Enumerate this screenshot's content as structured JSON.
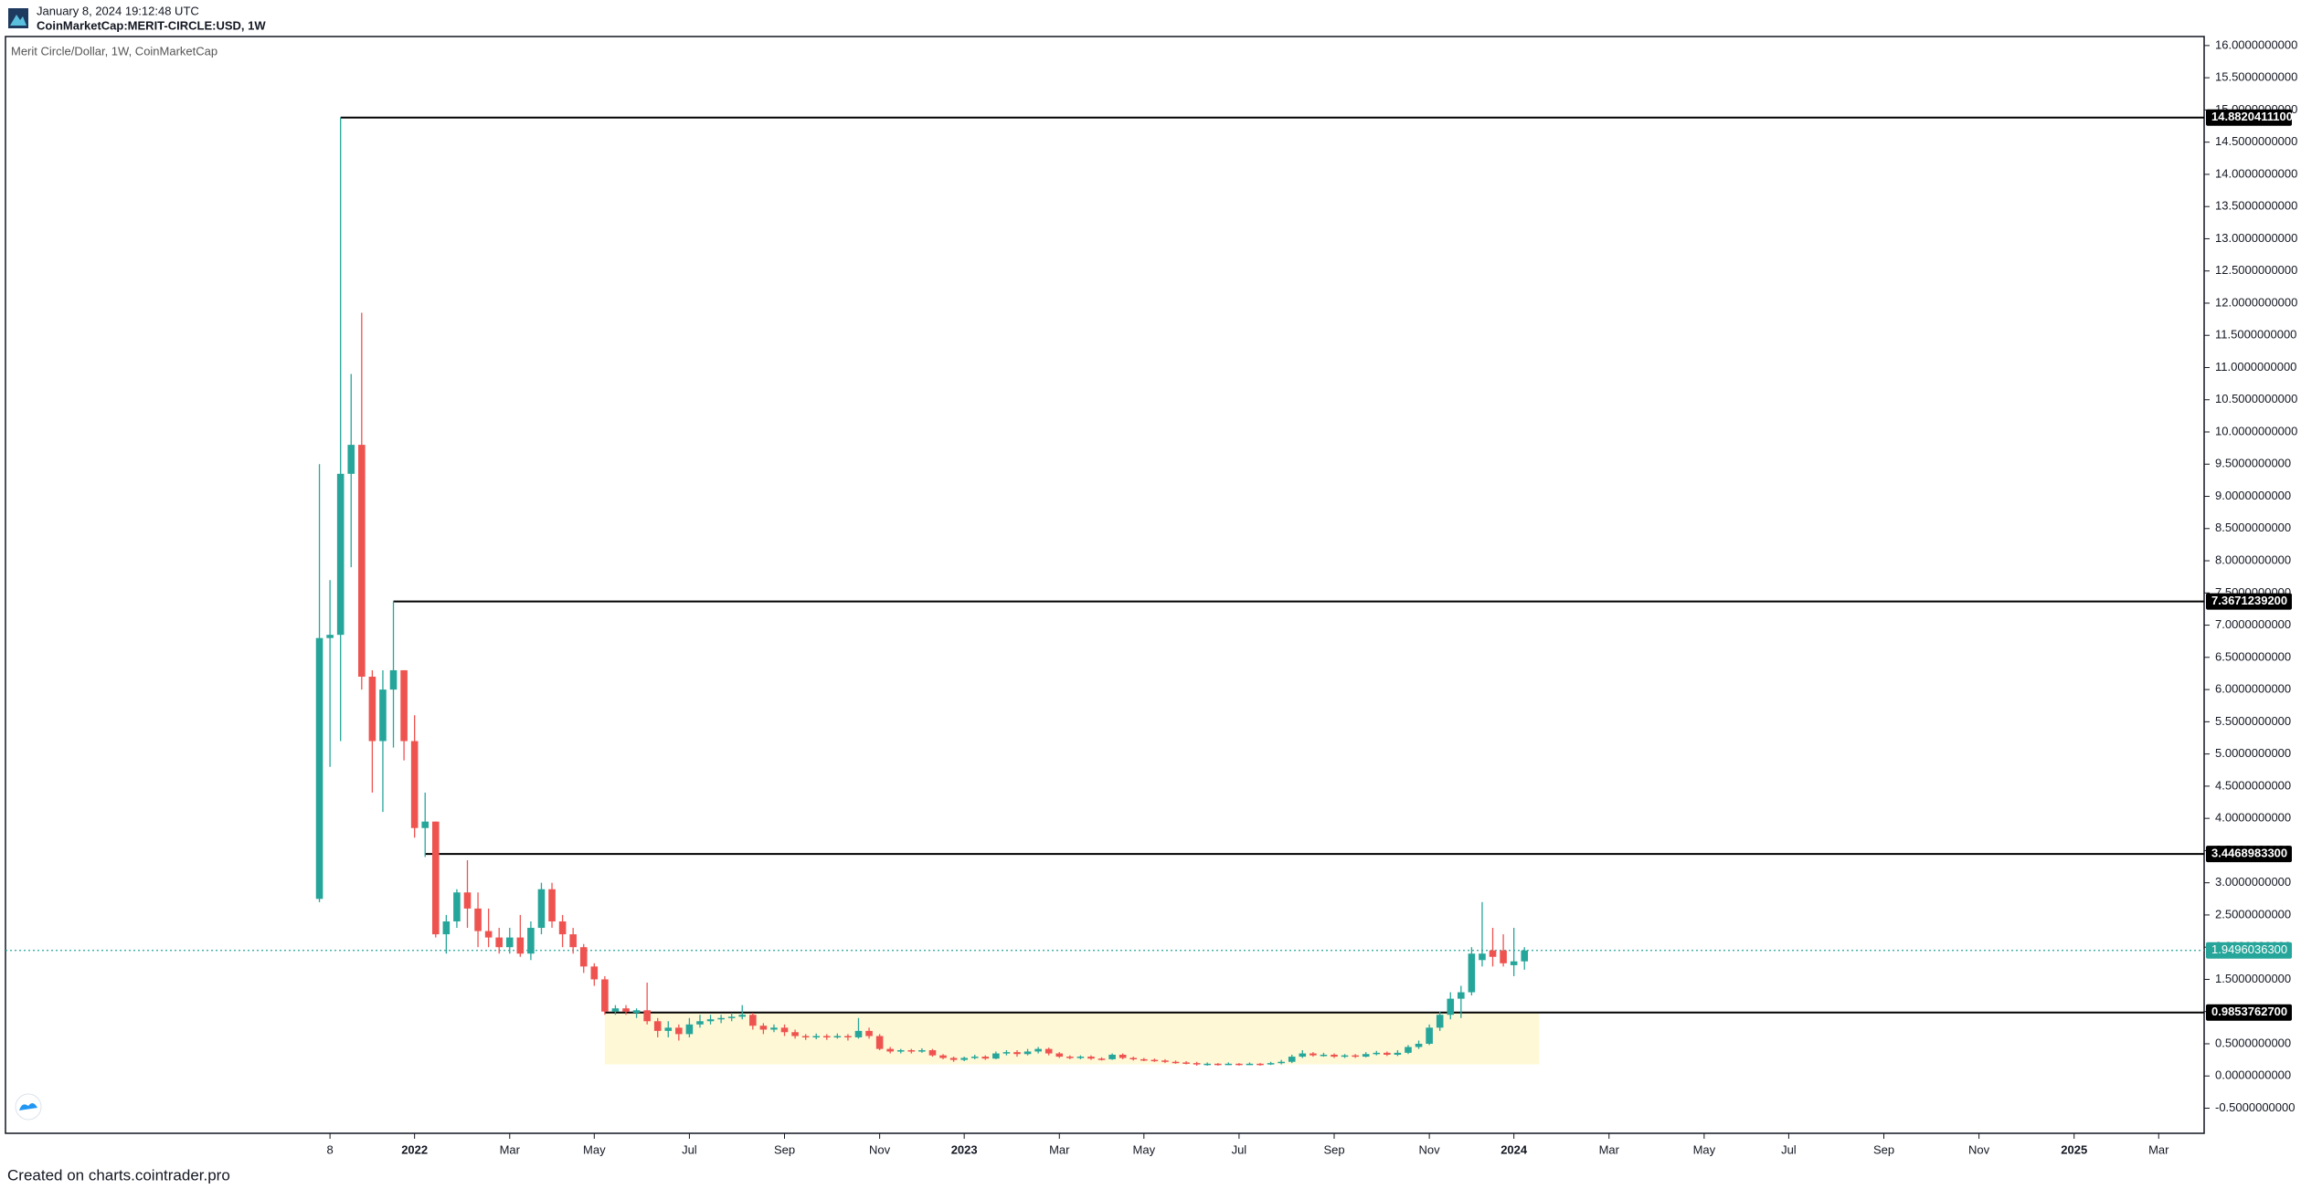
{
  "header": {
    "date": "January 8, 2024 19:12:48 UTC",
    "symbol": "CoinMarketCap:MERIT-CIRCLE:USD, 1W"
  },
  "footer": "Created on charts.cointrader.pro",
  "chart_data": {
    "type": "candlestick",
    "title": "Merit Circle/Dollar, 1W, CoinMarketCap",
    "up_color": "#26a69a",
    "down_color": "#ef5350",
    "grid": false,
    "open": [
      2.75,
      6.8,
      6.85,
      9.35,
      9.8,
      6.2,
      5.2,
      6.0,
      6.3,
      5.2,
      3.85,
      3.95,
      2.2,
      2.4,
      2.85,
      2.6,
      2.25,
      2.15,
      2.0,
      2.15,
      1.9,
      2.3,
      2.9,
      2.4,
      2.2,
      2.0,
      1.7,
      1.5,
      1.0,
      1.05,
      0.98,
      1.02,
      0.85,
      0.7,
      0.75,
      0.65,
      0.8,
      0.85,
      0.88,
      0.9,
      0.92,
      0.95,
      0.78,
      0.72,
      0.75,
      0.68,
      0.62,
      0.6,
      0.62,
      0.6,
      0.62,
      0.6,
      0.7,
      0.62,
      0.42,
      0.38,
      0.4,
      0.38,
      0.4,
      0.32,
      0.28,
      0.25,
      0.28,
      0.3,
      0.27,
      0.35,
      0.37,
      0.34,
      0.38,
      0.42,
      0.35,
      0.3,
      0.28,
      0.3,
      0.27,
      0.26,
      0.33,
      0.28,
      0.26,
      0.25,
      0.24,
      0.22,
      0.21,
      0.2,
      0.18,
      0.19,
      0.18,
      0.19,
      0.18,
      0.19,
      0.18,
      0.2,
      0.22,
      0.3,
      0.35,
      0.32,
      0.33,
      0.3,
      0.32,
      0.3,
      0.34,
      0.36,
      0.33,
      0.36,
      0.45,
      0.5,
      0.75,
      0.95,
      1.2,
      1.3,
      1.8,
      1.95,
      1.95,
      1.72,
      1.78
    ],
    "high": [
      9.5,
      7.7,
      14.88,
      10.9,
      11.85,
      6.3,
      6.3,
      7.37,
      6.3,
      5.6,
      4.4,
      3.95,
      2.5,
      2.9,
      3.35,
      2.85,
      2.6,
      2.3,
      2.3,
      2.5,
      2.4,
      3.0,
      3.0,
      2.5,
      2.3,
      2.05,
      1.75,
      1.55,
      1.1,
      1.1,
      1.05,
      1.45,
      0.9,
      0.85,
      0.8,
      0.9,
      0.95,
      0.95,
      0.95,
      0.98,
      1.1,
      0.98,
      0.82,
      0.8,
      0.8,
      0.72,
      0.65,
      0.66,
      0.65,
      0.66,
      0.65,
      0.9,
      0.75,
      0.65,
      0.45,
      0.42,
      0.42,
      0.43,
      0.42,
      0.34,
      0.3,
      0.3,
      0.33,
      0.32,
      0.38,
      0.4,
      0.4,
      0.42,
      0.45,
      0.44,
      0.37,
      0.32,
      0.32,
      0.32,
      0.29,
      0.35,
      0.35,
      0.3,
      0.28,
      0.27,
      0.26,
      0.24,
      0.23,
      0.22,
      0.21,
      0.2,
      0.21,
      0.2,
      0.21,
      0.2,
      0.22,
      0.25,
      0.33,
      0.4,
      0.37,
      0.36,
      0.35,
      0.34,
      0.34,
      0.37,
      0.39,
      0.38,
      0.4,
      0.48,
      0.55,
      0.8,
      1.0,
      1.3,
      1.4,
      2.0,
      2.7,
      2.3,
      2.2,
      2.3,
      2.0
    ],
    "low": [
      2.7,
      4.8,
      5.2,
      7.9,
      6.0,
      4.4,
      4.1,
      5.1,
      4.9,
      3.7,
      3.4,
      2.15,
      1.9,
      2.3,
      2.3,
      2.0,
      2.0,
      1.9,
      1.9,
      1.85,
      1.8,
      2.2,
      2.3,
      2.0,
      1.9,
      1.6,
      1.4,
      0.95,
      0.95,
      0.95,
      0.9,
      0.8,
      0.6,
      0.6,
      0.55,
      0.6,
      0.75,
      0.8,
      0.82,
      0.85,
      0.88,
      0.72,
      0.65,
      0.68,
      0.62,
      0.58,
      0.56,
      0.57,
      0.56,
      0.58,
      0.55,
      0.58,
      0.58,
      0.4,
      0.35,
      0.35,
      0.35,
      0.36,
      0.3,
      0.26,
      0.22,
      0.23,
      0.26,
      0.25,
      0.26,
      0.32,
      0.3,
      0.32,
      0.35,
      0.32,
      0.28,
      0.26,
      0.26,
      0.25,
      0.24,
      0.25,
      0.26,
      0.24,
      0.23,
      0.22,
      0.2,
      0.19,
      0.18,
      0.16,
      0.16,
      0.16,
      0.17,
      0.16,
      0.17,
      0.16,
      0.17,
      0.18,
      0.2,
      0.28,
      0.3,
      0.3,
      0.28,
      0.28,
      0.28,
      0.29,
      0.32,
      0.31,
      0.31,
      0.34,
      0.42,
      0.48,
      0.7,
      0.88,
      0.9,
      1.25,
      1.7,
      1.7,
      1.7,
      1.55,
      1.65
    ],
    "close": [
      6.8,
      6.85,
      9.35,
      9.8,
      6.2,
      5.2,
      6.0,
      6.3,
      5.2,
      3.85,
      3.95,
      2.2,
      2.4,
      2.85,
      2.6,
      2.25,
      2.15,
      2.0,
      2.15,
      1.9,
      2.3,
      2.9,
      2.4,
      2.2,
      2.0,
      1.7,
      1.5,
      1.0,
      1.05,
      1.0,
      1.02,
      0.85,
      0.7,
      0.75,
      0.65,
      0.8,
      0.85,
      0.88,
      0.9,
      0.92,
      0.95,
      0.78,
      0.72,
      0.75,
      0.68,
      0.62,
      0.6,
      0.62,
      0.6,
      0.62,
      0.6,
      0.7,
      0.62,
      0.42,
      0.38,
      0.4,
      0.38,
      0.4,
      0.32,
      0.28,
      0.25,
      0.28,
      0.3,
      0.27,
      0.35,
      0.37,
      0.34,
      0.38,
      0.42,
      0.35,
      0.3,
      0.28,
      0.3,
      0.27,
      0.26,
      0.33,
      0.28,
      0.26,
      0.25,
      0.24,
      0.22,
      0.21,
      0.2,
      0.18,
      0.19,
      0.18,
      0.19,
      0.18,
      0.19,
      0.18,
      0.2,
      0.22,
      0.3,
      0.35,
      0.32,
      0.33,
      0.3,
      0.32,
      0.3,
      0.34,
      0.36,
      0.33,
      0.36,
      0.45,
      0.5,
      0.75,
      0.95,
      1.2,
      1.3,
      1.9,
      1.9,
      1.85,
      1.75,
      1.78,
      1.95
    ],
    "xlim": [
      -29.7,
      178.3
    ],
    "xticks": [
      {
        "value": 1,
        "label": "8"
      },
      {
        "value": 9,
        "label": "2022"
      },
      {
        "value": 18,
        "label": "Mar"
      },
      {
        "value": 26,
        "label": "May"
      },
      {
        "value": 35,
        "label": "Jul"
      },
      {
        "value": 44,
        "label": "Sep"
      },
      {
        "value": 53,
        "label": "Nov"
      },
      {
        "value": 61,
        "label": "2023"
      },
      {
        "value": 70,
        "label": "Mar"
      },
      {
        "value": 78,
        "label": "May"
      },
      {
        "value": 87,
        "label": "Jul"
      },
      {
        "value": 96,
        "label": "Sep"
      },
      {
        "value": 105,
        "label": "Nov"
      },
      {
        "value": 113,
        "label": "2024"
      },
      {
        "value": 122,
        "label": "Mar"
      },
      {
        "value": 131,
        "label": "May"
      },
      {
        "value": 139,
        "label": "Jul"
      },
      {
        "value": 148,
        "label": "Sep"
      },
      {
        "value": 157,
        "label": "Nov"
      },
      {
        "value": 166,
        "label": "2025"
      },
      {
        "value": 174,
        "label": "Mar"
      }
    ],
    "ylim": [
      -0.89,
      16.14
    ],
    "yticks": [
      {
        "value": -0.5,
        "label": "-0.5000000000"
      },
      {
        "value": 0,
        "label": "0.0000000000"
      },
      {
        "value": 0.5,
        "label": "0.5000000000"
      },
      {
        "value": 1,
        "label": "1.0000000000"
      },
      {
        "value": 1.5,
        "label": "1.5000000000"
      },
      {
        "value": 2,
        "label": "2.0000000000"
      },
      {
        "value": 2.5,
        "label": "2.5000000000"
      },
      {
        "value": 3,
        "label": "3.0000000000"
      },
      {
        "value": 3.5,
        "label": "3.5000000000"
      },
      {
        "value": 4,
        "label": "4.0000000000"
      },
      {
        "value": 4.5,
        "label": "4.5000000000"
      },
      {
        "value": 5,
        "label": "5.0000000000"
      },
      {
        "value": 5.5,
        "label": "5.5000000000"
      },
      {
        "value": 6,
        "label": "6.0000000000"
      },
      {
        "value": 6.5,
        "label": "6.5000000000"
      },
      {
        "value": 7,
        "label": "7.0000000000"
      },
      {
        "value": 7.5,
        "label": "7.5000000000"
      },
      {
        "value": 8,
        "label": "8.0000000000"
      },
      {
        "value": 8.5,
        "label": "8.5000000000"
      },
      {
        "value": 9,
        "label": "9.0000000000"
      },
      {
        "value": 9.5,
        "label": "9.5000000000"
      },
      {
        "value": 10,
        "label": "10.0000000000"
      },
      {
        "value": 10.5,
        "label": "10.5000000000"
      },
      {
        "value": 11,
        "label": "11.0000000000"
      },
      {
        "value": 11.5,
        "label": "11.5000000000"
      },
      {
        "value": 12,
        "label": "12.0000000000"
      },
      {
        "value": 12.5,
        "label": "12.5000000000"
      },
      {
        "value": 13,
        "label": "13.0000000000"
      },
      {
        "value": 13.5,
        "label": "13.5000000000"
      },
      {
        "value": 14,
        "label": "14.0000000000"
      },
      {
        "value": 14.5,
        "label": "14.5000000000"
      },
      {
        "value": 15,
        "label": "15.0000000000"
      },
      {
        "value": 15.5,
        "label": "15.5000000000"
      },
      {
        "value": 16,
        "label": "16.0000000000"
      }
    ],
    "levels": [
      {
        "value": 14.88204111,
        "label": "14.8820411100",
        "x_start": 2
      },
      {
        "value": 7.36712392,
        "label": "7.3671239200",
        "x_start": 7
      },
      {
        "value": 3.44689833,
        "label": "3.4468983300",
        "x_start": 10
      },
      {
        "value": 0.98537627,
        "label": "0.9853762700",
        "x_start": 27
      }
    ],
    "level_color": "#000000",
    "last_price": {
      "value": 1.94960363,
      "label": "1.9496036300",
      "color": "#26a69a"
    },
    "zone": {
      "x_range": [
        27,
        115.4
      ],
      "y_range": [
        0.18,
        0.98537627
      ],
      "color": "#fff8d6"
    }
  }
}
